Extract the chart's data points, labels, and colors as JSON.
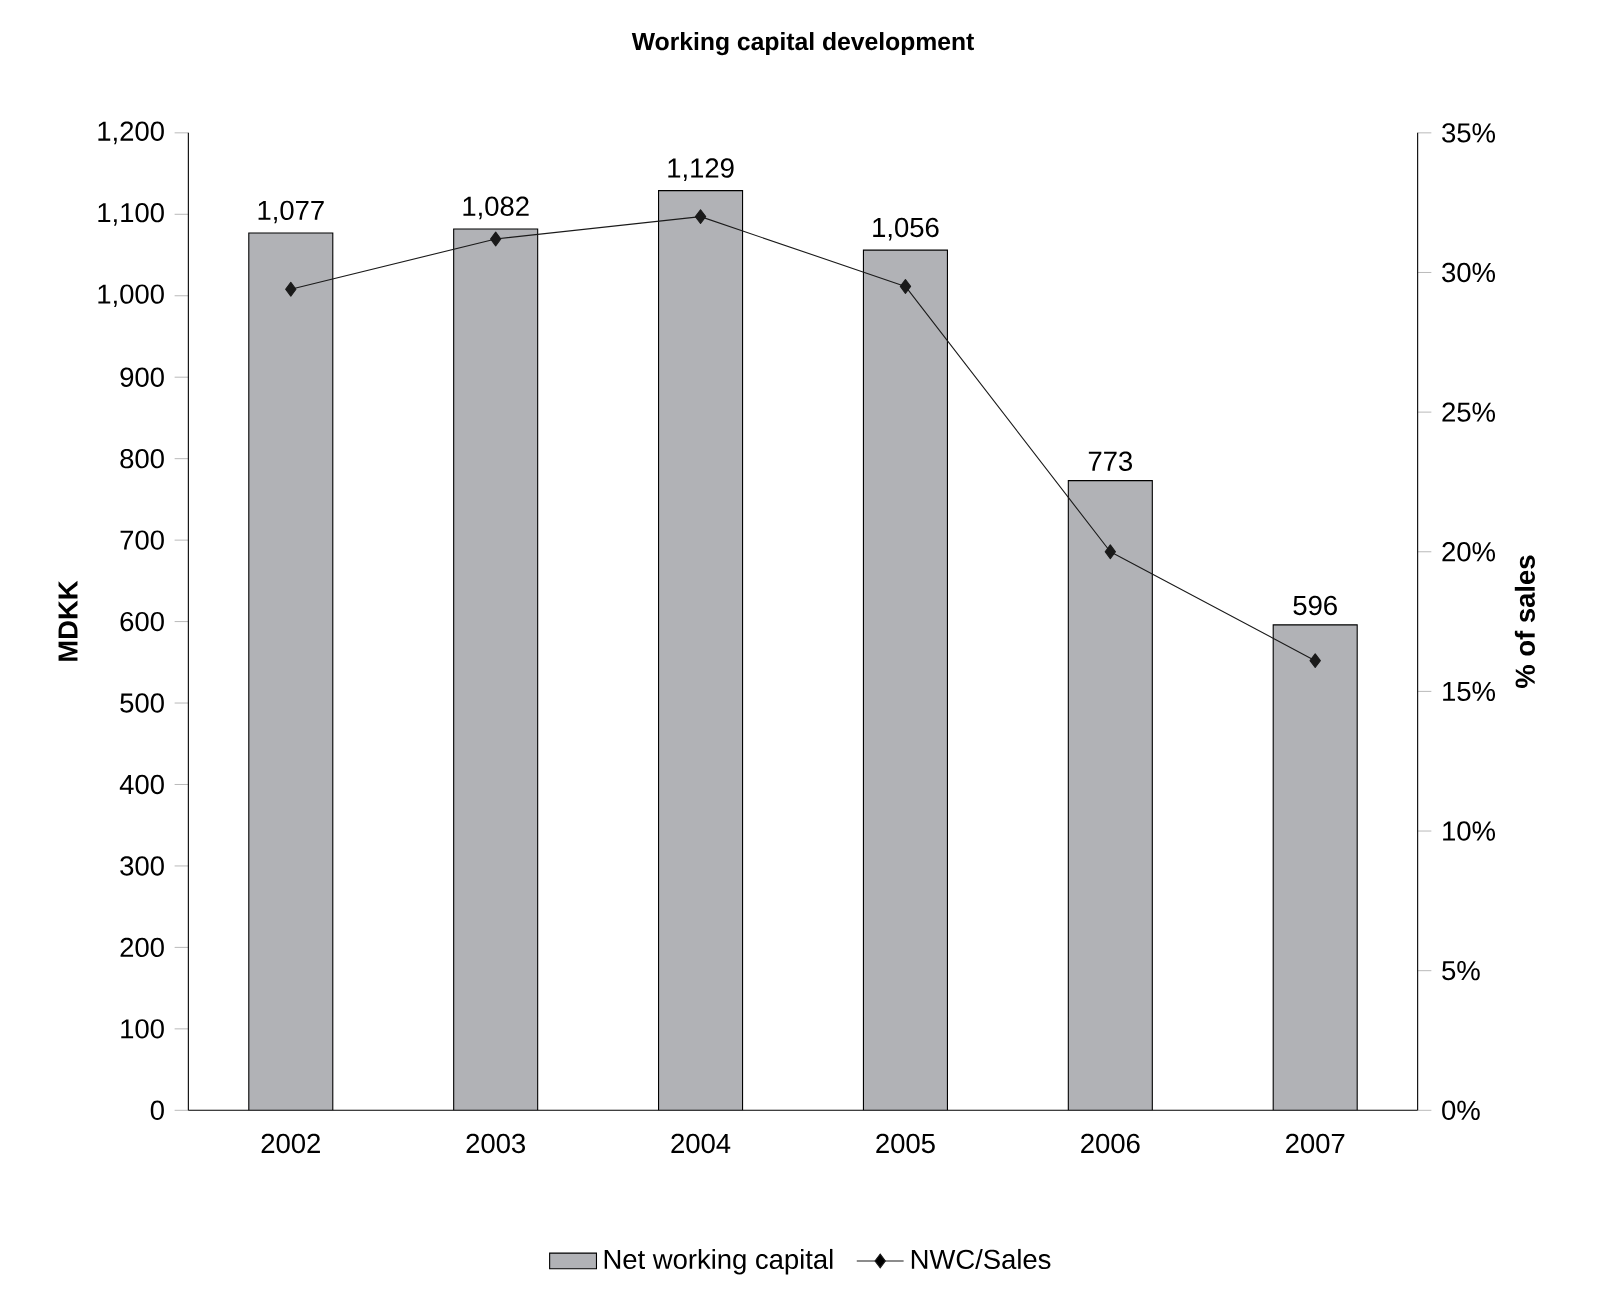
{
  "chart_data": {
    "type": "bar",
    "title": "Working capital development",
    "ylabel": "MDKK",
    "y2label": "% of sales",
    "categories": [
      "2002",
      "2003",
      "2004",
      "2005",
      "2006",
      "2007"
    ],
    "series": [
      {
        "name": "Net working capital",
        "color": "#b1b2b6",
        "values": [
          1077,
          1082,
          1129,
          1056,
          773,
          596
        ],
        "value_labels": [
          "1,077",
          "1,082",
          "1,129",
          "1,056",
          "773",
          "596"
        ]
      },
      {
        "name": "NWC/Sales",
        "type": "line",
        "axis": "y2",
        "color": "#1a1a1a",
        "marker": "diamond",
        "values": [
          29.4,
          31.2,
          32.0,
          29.5,
          20.0,
          16.1
        ]
      }
    ],
    "ylim": [
      0,
      1200
    ],
    "yticks": [
      {
        "value": 0,
        "label": "0"
      },
      {
        "value": 100,
        "label": "100"
      },
      {
        "value": 200,
        "label": "200"
      },
      {
        "value": 300,
        "label": "300"
      },
      {
        "value": 400,
        "label": "400"
      },
      {
        "value": 500,
        "label": "500"
      },
      {
        "value": 600,
        "label": "600"
      },
      {
        "value": 700,
        "label": "700"
      },
      {
        "value": 800,
        "label": "800"
      },
      {
        "value": 900,
        "label": "900"
      },
      {
        "value": 1000,
        "label": "1,000"
      },
      {
        "value": 1100,
        "label": "1,100"
      },
      {
        "value": 1200,
        "label": "1,200"
      }
    ],
    "y2lim": [
      0,
      35
    ],
    "y2ticks": [
      {
        "value": 0,
        "label": "0%"
      },
      {
        "value": 5,
        "label": "5%"
      },
      {
        "value": 10,
        "label": "10%"
      },
      {
        "value": 15,
        "label": "15%"
      },
      {
        "value": 20,
        "label": "20%"
      },
      {
        "value": 25,
        "label": "25%"
      },
      {
        "value": 30,
        "label": "30%"
      },
      {
        "value": 35,
        "label": "35%"
      }
    ],
    "legend": "bottom",
    "grid": false
  }
}
